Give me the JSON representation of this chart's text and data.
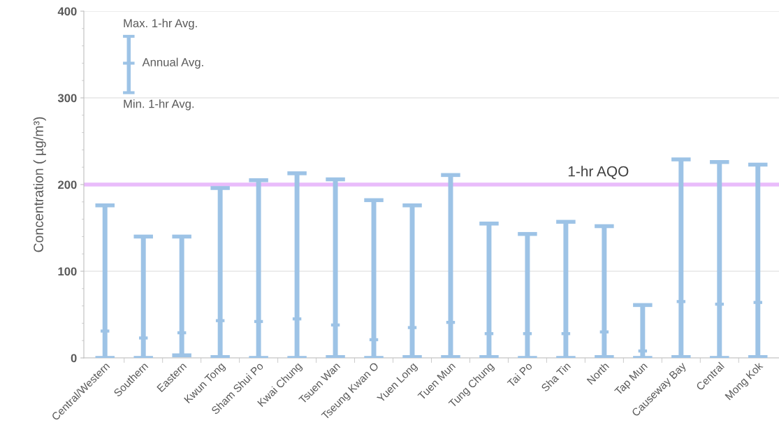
{
  "chart_data": {
    "type": "scatter",
    "ylabel": "Concentration ( µg/m³)",
    "categories": [
      "Central/Western",
      "Southern",
      "Eastern",
      "Kwun Tong",
      "Sham Shui Po",
      "Kwai Chung",
      "Tsuen Wan",
      "Tseung Kwan O",
      "Yuen Long",
      "Tuen Mun",
      "Tung Chung",
      "Tai Po",
      "Sha Tin",
      "North",
      "Tap Mun",
      "Causeway Bay",
      "Central",
      "Mong Kok"
    ],
    "series": [
      {
        "color": "#9dc3e6",
        "values": [
          31,
          23,
          29,
          43,
          42,
          45,
          38,
          21,
          35,
          41,
          28,
          28,
          28,
          30,
          8,
          65,
          62,
          64
        ],
        "errors": [
          [
            0,
            176
          ],
          [
            0,
            140
          ],
          [
            3,
            140
          ],
          [
            1,
            196
          ],
          [
            0,
            205
          ],
          [
            0,
            213
          ],
          [
            1,
            206
          ],
          [
            0,
            182
          ],
          [
            1,
            176
          ],
          [
            1,
            211
          ],
          [
            1,
            155
          ],
          [
            0,
            143
          ],
          [
            0,
            157
          ],
          [
            1,
            152
          ],
          [
            0,
            61
          ],
          [
            1,
            229
          ],
          [
            0,
            226
          ],
          [
            1,
            223
          ]
        ]
      }
    ],
    "ylim": [
      0,
      400
    ],
    "yticks": [
      0,
      100,
      200,
      300,
      400
    ],
    "grid": "y",
    "ref_lines": [
      {
        "axis": "y",
        "value": 200,
        "label": "1-hr AQO",
        "color": "#e9bcfb"
      }
    ],
    "annotations": [
      "Max. 1-hr Avg.",
      "Annual Avg.",
      "Min. 1-hr Avg."
    ]
  }
}
